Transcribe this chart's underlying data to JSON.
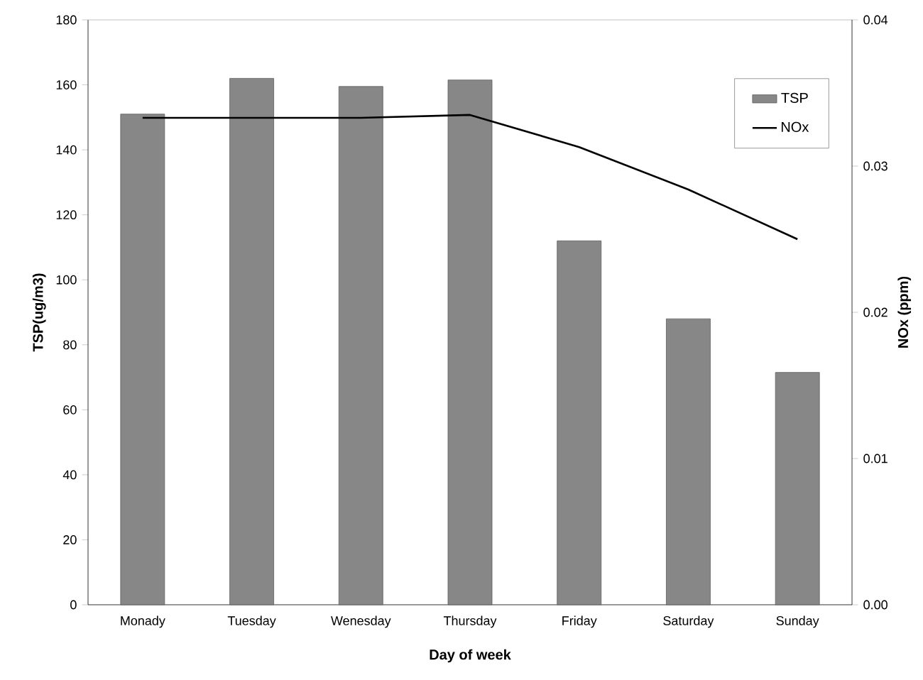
{
  "chart_data": {
    "type": "bar",
    "xlabel": "Day of week",
    "ylabel": "TSP(ug/m3)",
    "y2label": "NOx (ppm)",
    "categories": [
      "Monady",
      "Tuesday",
      "Wenesday",
      "Thursday",
      "Friday",
      "Saturday",
      "Sunday"
    ],
    "series": [
      {
        "name": "TSP",
        "color": "#878787",
        "values": [
          151,
          162,
          159.5,
          161.5,
          112,
          88,
          71.5
        ]
      },
      {
        "name": "NOx",
        "type": "line",
        "axis": "y2",
        "color": "#000000",
        "values": [
          0.0333,
          0.0333,
          0.0333,
          0.0335,
          0.0313,
          0.0284,
          0.025
        ]
      }
    ],
    "ylim": [
      0,
      180
    ],
    "yticks": [
      0,
      20,
      40,
      60,
      80,
      100,
      120,
      140,
      160,
      180
    ],
    "y2lim": [
      0,
      0.04
    ],
    "y2ticks": [
      {
        "value": 0,
        "label": "0.00"
      },
      {
        "value": 0.01,
        "label": "0.01"
      },
      {
        "value": 0.02,
        "label": "0.02"
      },
      {
        "value": 0.03,
        "label": "0.03"
      },
      {
        "value": 0.04,
        "label": "0.04"
      }
    ],
    "legend": "top right",
    "grid": false,
    "marker": "none",
    "line_style": "solid"
  }
}
